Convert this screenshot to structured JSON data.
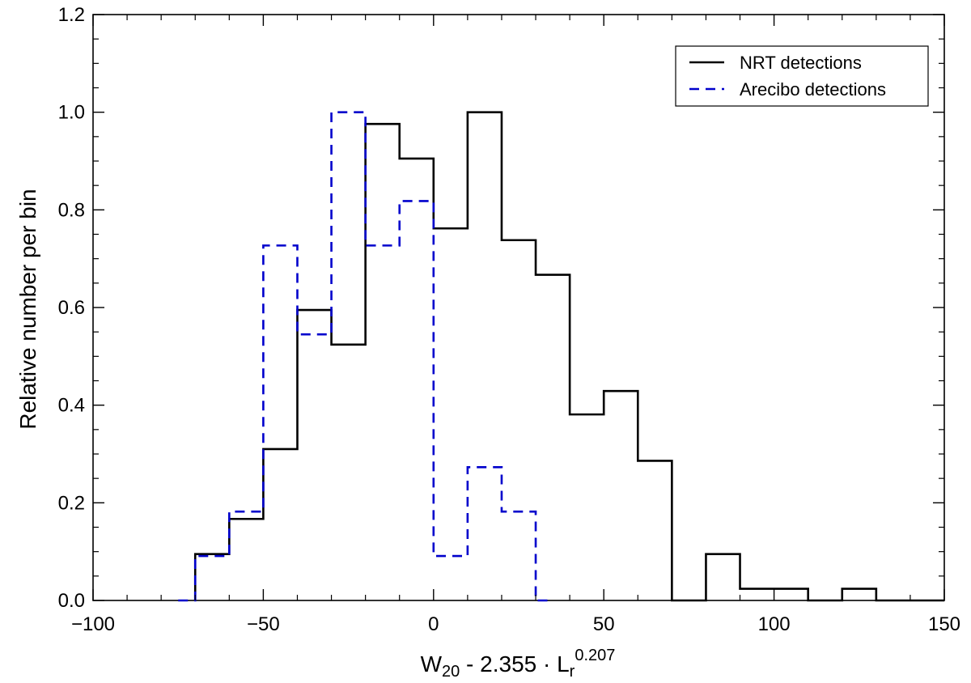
{
  "chart_data": {
    "type": "histogram",
    "xlabel": {
      "main": "W",
      "sub": "20",
      "middle": " - 2.355 · L",
      "sub2": "r",
      "sup": "0.207"
    },
    "ylabel": "Relative number per bin",
    "xlim": [
      -100,
      150
    ],
    "ylim": [
      0.0,
      1.2
    ],
    "xticks": [
      -100,
      -50,
      0,
      50,
      100,
      150
    ],
    "xtick_labels": [
      "−100",
      "−50",
      "0",
      "50",
      "100",
      "150"
    ],
    "yticks": [
      0.0,
      0.2,
      0.4,
      0.6,
      0.8,
      1.0,
      1.2
    ],
    "ytick_labels": [
      "0.0",
      "0.2",
      "0.4",
      "0.6",
      "0.8",
      "1.0",
      "1.2"
    ],
    "legend": {
      "position": "top-right",
      "entries": [
        "NRT detections",
        "Arecibo detections"
      ]
    },
    "series": [
      {
        "name": "NRT detections",
        "style": "solid",
        "color": "#000000",
        "bin_edges": [
          -70,
          -60,
          -50,
          -40,
          -30,
          -20,
          -10,
          0,
          10,
          20,
          30,
          40,
          50,
          60,
          70,
          80,
          90,
          100,
          110,
          120,
          130,
          150
        ],
        "values": [
          0.095,
          0.167,
          0.31,
          0.595,
          0.524,
          0.976,
          0.905,
          0.762,
          1.0,
          0.738,
          0.667,
          0.381,
          0.429,
          0.286,
          0.0,
          0.095,
          0.024,
          0.024,
          0.0,
          0.024,
          0.0
        ]
      },
      {
        "name": "Arecibo detections",
        "style": "dashed",
        "color": "#0000cc",
        "bin_edges": [
          -75,
          -70,
          -60,
          -50,
          -40,
          -30,
          -20,
          -10,
          0,
          10,
          20,
          30,
          35
        ],
        "values": [
          0.0,
          0.091,
          0.182,
          0.727,
          0.545,
          1.0,
          0.727,
          0.818,
          0.091,
          0.273,
          0.182,
          0.0
        ]
      }
    ]
  }
}
